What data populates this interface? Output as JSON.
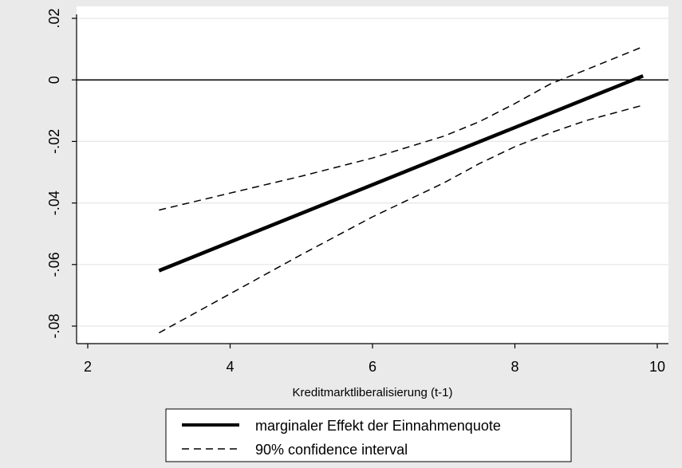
{
  "chart_data": {
    "type": "line",
    "xlabel": "Kreditmarktliberalisierung (t-1)",
    "ylabel": "",
    "xlim": [
      1.8,
      10.2
    ],
    "ylim": [
      -0.086,
      0.022
    ],
    "x_ticks": [
      2,
      4,
      6,
      8,
      10
    ],
    "x_tick_labels": [
      "2",
      "4",
      "6",
      "8",
      "10"
    ],
    "y_ticks": [
      -0.08,
      -0.06,
      -0.04,
      -0.02,
      0,
      0.02
    ],
    "y_tick_labels": [
      "-.08",
      "-.06",
      "-.04",
      "-.02",
      "0",
      ".02"
    ],
    "grid": true,
    "reference_line_y": 0,
    "legend_position": "bottom",
    "series": [
      {
        "name": "marginaler Effekt der Einnahmenquote",
        "style": "solid-thick",
        "color": "#000000",
        "x": [
          3,
          9.8
        ],
        "y": [
          -0.062,
          0.0013
        ]
      },
      {
        "name": "90% confidence interval",
        "style": "dashed",
        "color": "#000000",
        "x": [
          3,
          4,
          5,
          6,
          7,
          7.5,
          8,
          8.5,
          9,
          9.8
        ],
        "y": [
          -0.0423,
          -0.0368,
          -0.0313,
          -0.0254,
          -0.0183,
          -0.0136,
          -0.0077,
          -0.0013,
          0.0033,
          0.0108
        ]
      },
      {
        "name": "",
        "style": "dashed",
        "color": "#000000",
        "x": [
          3,
          4,
          5,
          6,
          7,
          7.5,
          8,
          8.5,
          9,
          9.8
        ],
        "y": [
          -0.0822,
          -0.0695,
          -0.0568,
          -0.0445,
          -0.0335,
          -0.0272,
          -0.0217,
          -0.0172,
          -0.0132,
          -0.0082
        ]
      }
    ]
  }
}
